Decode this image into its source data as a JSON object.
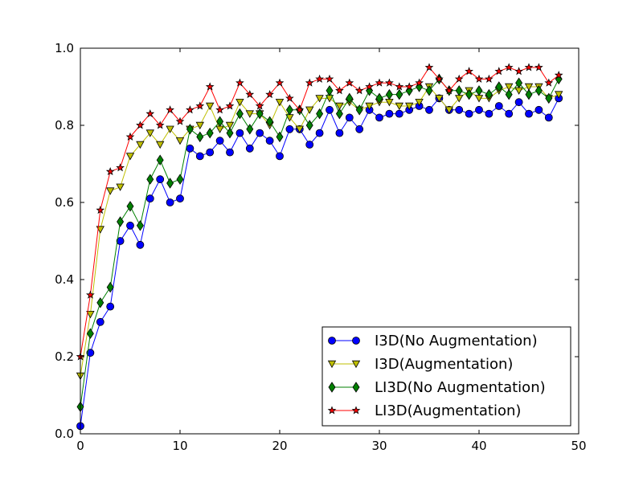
{
  "chart_data": {
    "type": "line",
    "title": "",
    "xlabel": "",
    "ylabel": "",
    "xlim": [
      0,
      50
    ],
    "ylim": [
      0.0,
      1.0
    ],
    "x_ticks": [
      0,
      10,
      20,
      30,
      40,
      50
    ],
    "y_ticks": [
      0.0,
      0.2,
      0.4,
      0.6,
      0.8,
      1.0
    ],
    "x_tick_labels": [
      "0",
      "10",
      "20",
      "30",
      "40",
      "50"
    ],
    "y_tick_labels": [
      "0.0",
      "0.2",
      "0.4",
      "0.6",
      "0.8",
      "1.0"
    ],
    "grid": false,
    "legend_position": "bottom-right",
    "x": [
      0,
      1,
      2,
      3,
      4,
      5,
      6,
      7,
      8,
      9,
      10,
      11,
      12,
      13,
      14,
      15,
      16,
      17,
      18,
      19,
      20,
      21,
      22,
      23,
      24,
      25,
      26,
      27,
      28,
      29,
      30,
      31,
      32,
      33,
      34,
      35,
      36,
      37,
      38,
      39,
      40,
      41,
      42,
      43,
      44,
      45,
      46,
      47,
      48
    ],
    "series": [
      {
        "name": "I3D(No Augmentation)",
        "color": "#0000ff",
        "marker": "circle",
        "values": [
          0.02,
          0.21,
          0.29,
          0.33,
          0.5,
          0.54,
          0.49,
          0.61,
          0.66,
          0.6,
          0.61,
          0.74,
          0.72,
          0.73,
          0.76,
          0.73,
          0.78,
          0.74,
          0.78,
          0.76,
          0.72,
          0.79,
          0.79,
          0.75,
          0.78,
          0.84,
          0.78,
          0.82,
          0.79,
          0.84,
          0.82,
          0.83,
          0.83,
          0.84,
          0.85,
          0.84,
          0.87,
          0.84,
          0.84,
          0.83,
          0.84,
          0.83,
          0.85,
          0.83,
          0.86,
          0.83,
          0.84,
          0.82,
          0.87
        ]
      },
      {
        "name": "I3D(Augmentation)",
        "color": "#bfbf00",
        "marker": "triangle-down",
        "values": [
          0.15,
          0.31,
          0.53,
          0.63,
          0.64,
          0.72,
          0.75,
          0.78,
          0.75,
          0.79,
          0.76,
          0.79,
          0.8,
          0.85,
          0.79,
          0.8,
          0.86,
          0.83,
          0.83,
          0.8,
          0.86,
          0.82,
          0.79,
          0.84,
          0.87,
          0.87,
          0.85,
          0.86,
          0.84,
          0.85,
          0.86,
          0.86,
          0.85,
          0.85,
          0.86,
          0.9,
          0.87,
          0.84,
          0.87,
          0.89,
          0.87,
          0.87,
          0.89,
          0.9,
          0.89,
          0.9,
          0.9,
          0.87,
          0.88
        ]
      },
      {
        "name": "LI3D(No Augmentation)",
        "color": "#008000",
        "marker": "diamond",
        "values": [
          0.07,
          0.26,
          0.34,
          0.38,
          0.55,
          0.59,
          0.54,
          0.66,
          0.71,
          0.65,
          0.66,
          0.79,
          0.77,
          0.78,
          0.81,
          0.78,
          0.83,
          0.79,
          0.83,
          0.81,
          0.77,
          0.84,
          0.84,
          0.8,
          0.83,
          0.89,
          0.83,
          0.87,
          0.84,
          0.89,
          0.87,
          0.88,
          0.88,
          0.89,
          0.9,
          0.89,
          0.92,
          0.89,
          0.89,
          0.88,
          0.89,
          0.88,
          0.9,
          0.88,
          0.91,
          0.88,
          0.89,
          0.87,
          0.92
        ]
      },
      {
        "name": "LI3D(Augmentation)",
        "color": "#ff0000",
        "marker": "star",
        "values": [
          0.2,
          0.36,
          0.58,
          0.68,
          0.69,
          0.77,
          0.8,
          0.83,
          0.8,
          0.84,
          0.81,
          0.84,
          0.85,
          0.9,
          0.84,
          0.85,
          0.91,
          0.88,
          0.85,
          0.88,
          0.91,
          0.87,
          0.84,
          0.91,
          0.92,
          0.92,
          0.89,
          0.91,
          0.89,
          0.9,
          0.91,
          0.91,
          0.9,
          0.9,
          0.91,
          0.95,
          0.92,
          0.89,
          0.92,
          0.94,
          0.92,
          0.92,
          0.94,
          0.95,
          0.94,
          0.95,
          0.95,
          0.91,
          0.93
        ]
      }
    ]
  }
}
